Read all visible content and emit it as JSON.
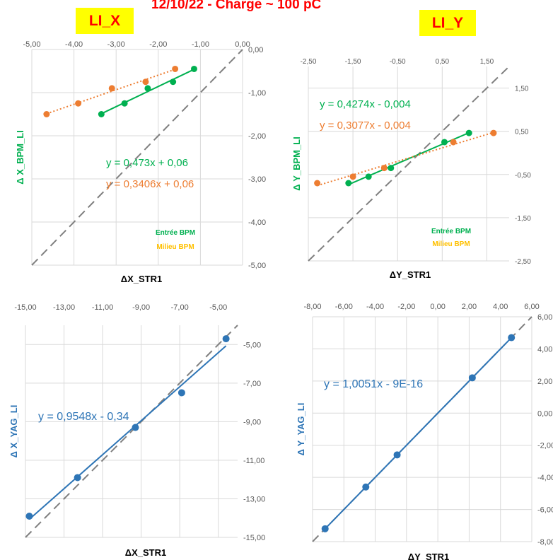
{
  "page": {
    "title": "12/10/22 - Charge ~ 100 pC",
    "tag_x": "LI_X",
    "tag_y": "LI_Y"
  },
  "colors": {
    "green": "#00b050",
    "orange": "#ed7d31",
    "blue": "#2e75b6",
    "eq_blue": "#2e75b6",
    "identity": "#7f7f7f",
    "grid": "#d9d9d9",
    "axis_text": "#595959",
    "label_green": "#00b050",
    "label_orange": "#ffc000"
  },
  "chart_data": [
    {
      "id": "chart-x-bpm",
      "type": "scatter",
      "xlabel": "ΔX_STR1",
      "ylabel": "Δ X_BPM_LI",
      "xlim": [
        -5,
        0
      ],
      "ylim": [
        -5,
        0
      ],
      "xticks": [
        "-5,00",
        "-4,00",
        "-3,00",
        "-2,00",
        "-1,00",
        "0,00"
      ],
      "yticks": [
        "0,00",
        "-1,00",
        "-2,00",
        "-3,00",
        "-4,00",
        "-5,00"
      ],
      "legend": [
        "Entrée BPM",
        "Milieu BPM"
      ],
      "series": [
        {
          "name": "Entrée BPM",
          "color": "green",
          "x": [
            -3.35,
            -2.8,
            -2.25,
            -1.65,
            -1.15
          ],
          "y": [
            -1.5,
            -1.25,
            -0.9,
            -0.75,
            -0.45
          ],
          "trend": "solid",
          "equation": "y = 0,473x + 0,06"
        },
        {
          "name": "Milieu BPM",
          "color": "orange",
          "x": [
            -4.65,
            -3.9,
            -3.1,
            -2.3,
            -1.6
          ],
          "y": [
            -1.5,
            -1.25,
            -0.9,
            -0.75,
            -0.45
          ],
          "trend": "dotted",
          "equation": "y = 0,3406x + 0,06"
        }
      ]
    },
    {
      "id": "chart-y-bpm",
      "type": "scatter",
      "xlabel": "ΔY_STR1",
      "ylabel": "Δ Y_BPM_LI",
      "xlim": [
        -2.5,
        2.0
      ],
      "ylim": [
        -2.5,
        2.0
      ],
      "xticks": [
        "-2,50",
        "-1,50",
        "-0,50",
        "0,50",
        "1,50"
      ],
      "yticks": [
        "1,50",
        "0,50",
        "-0,50",
        "-1,50",
        "-2,50"
      ],
      "legend": [
        "Entrée BPM",
        "Milieu BPM"
      ],
      "series": [
        {
          "name": "Entrée BPM",
          "color": "green",
          "x": [
            -1.6,
            -1.15,
            -0.65,
            0.55,
            1.1
          ],
          "y": [
            -0.7,
            -0.55,
            -0.35,
            0.25,
            0.46
          ],
          "trend": "solid",
          "equation": "y = 0,4274x - 0,004"
        },
        {
          "name": "Milieu BPM",
          "color": "orange",
          "x": [
            -2.3,
            -1.5,
            -0.8,
            0.75,
            1.65
          ],
          "y": [
            -0.7,
            -0.55,
            -0.35,
            0.25,
            0.46
          ],
          "trend": "dotted",
          "equation": "y = 0,3077x - 0,004"
        }
      ]
    },
    {
      "id": "chart-x-yag",
      "type": "scatter",
      "xlabel": "ΔX_STR1",
      "ylabel": "Δ X_YAG_LI",
      "xlim": [
        -15,
        -4
      ],
      "ylim": [
        -15,
        -4
      ],
      "xticks": [
        "-15,00",
        "-13,00",
        "-11,00",
        "-9,00",
        "-7,00",
        "-5,00"
      ],
      "yticks": [
        "-5,00",
        "-7,00",
        "-9,00",
        "-11,00",
        "-13,00",
        "-15,00"
      ],
      "series": [
        {
          "name": "",
          "color": "blue",
          "x": [
            -14.8,
            -12.3,
            -9.3,
            -6.9,
            -4.6
          ],
          "y": [
            -13.9,
            -11.9,
            -9.3,
            -7.5,
            -4.7
          ],
          "trend": "solid",
          "equation": "y = 0,9548x - 0,34"
        }
      ]
    },
    {
      "id": "chart-y-yag",
      "type": "scatter",
      "xlabel": "ΔY_STR1",
      "ylabel": "Δ Y_YAG_LI",
      "xlim": [
        -8,
        6
      ],
      "ylim": [
        -8,
        6
      ],
      "xticks": [
        "-8,00",
        "-6,00",
        "-4,00",
        "-2,00",
        "0,00",
        "2,00",
        "4,00",
        "6,00"
      ],
      "yticks": [
        "6,00",
        "4,00",
        "2,00",
        "0,00",
        "-2,00",
        "-4,00",
        "-6,00",
        "-8,00"
      ],
      "series": [
        {
          "name": "",
          "color": "blue",
          "x": [
            -7.2,
            -4.6,
            -2.6,
            2.2,
            4.7
          ],
          "y": [
            -7.2,
            -4.6,
            -2.6,
            2.2,
            4.7
          ],
          "trend": "solid",
          "equation": "y = 1,0051x - 9E-16"
        }
      ]
    }
  ]
}
